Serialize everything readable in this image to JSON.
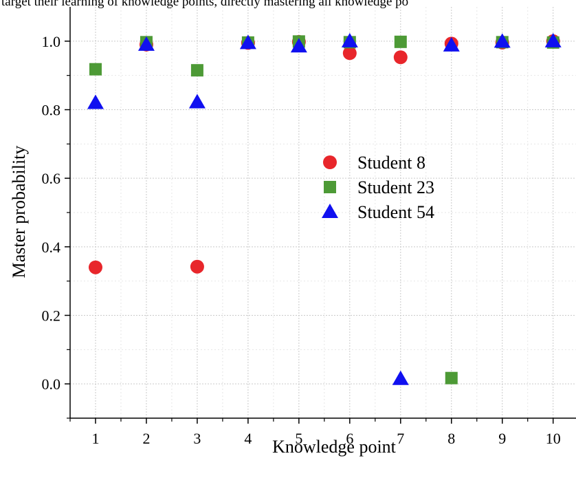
{
  "top_caption": "target their learning of knowledge points, directly mastering all knowledge po",
  "chart_data": {
    "type": "scatter",
    "title": "",
    "xlabel": "Knowledge point",
    "ylabel": "Master probability",
    "xlim": [
      0.5,
      10.45
    ],
    "ylim": [
      -0.1,
      1.1
    ],
    "x_ticks": [
      1,
      2,
      3,
      4,
      5,
      6,
      7,
      8,
      9,
      10
    ],
    "y_ticks": [
      0.0,
      0.2,
      0.4,
      0.6,
      0.8,
      1.0
    ],
    "y_tick_labels": [
      "0.0",
      "0.2",
      "0.4",
      "0.6",
      "0.8",
      "1.0"
    ],
    "grid": true,
    "legend_position": "center-right",
    "series": [
      {
        "name": "Student 8",
        "marker": "circle",
        "color": "#e8262b",
        "x": [
          1,
          2,
          3,
          4,
          5,
          6,
          7,
          8,
          9,
          10
        ],
        "y": [
          0.34,
          0.99,
          0.342,
          0.995,
          0.998,
          0.965,
          0.953,
          0.993,
          0.996,
          1.0
        ]
      },
      {
        "name": "Student 23",
        "marker": "square",
        "color": "#4d9a36",
        "x": [
          1,
          2,
          3,
          4,
          5,
          6,
          7,
          8,
          9,
          10
        ],
        "y": [
          0.918,
          0.997,
          0.915,
          0.996,
          0.999,
          0.997,
          0.998,
          0.017,
          0.997,
          0.996
        ]
      },
      {
        "name": "Student 54",
        "marker": "triangle",
        "color": "#1010f0",
        "x": [
          1,
          2,
          3,
          4,
          5,
          6,
          7,
          8,
          9,
          10
        ],
        "y": [
          0.82,
          0.99,
          0.822,
          0.995,
          0.985,
          1.0,
          0.015,
          0.988,
          0.999,
          1.0
        ]
      }
    ]
  }
}
